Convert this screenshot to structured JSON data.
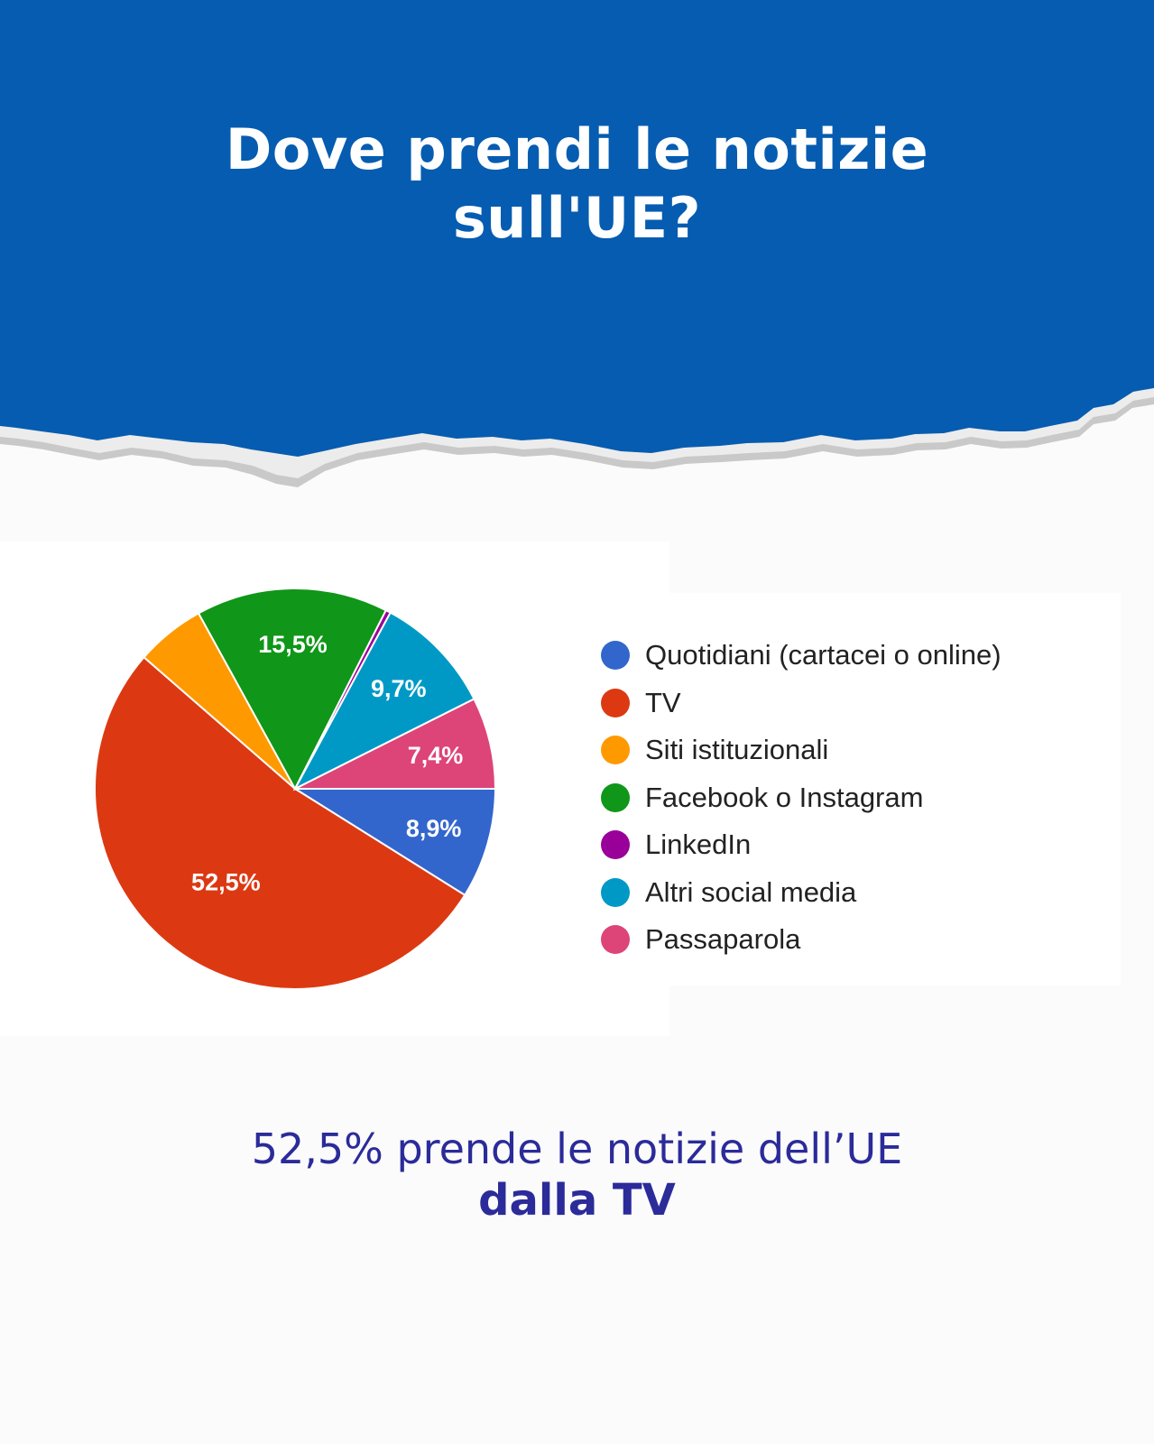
{
  "header": {
    "title_line1": "Dove prendi le notizie",
    "title_line2": "sull'UE?",
    "background_color": "#065cb0"
  },
  "chart_data": {
    "type": "pie",
    "start_angle_deg": 90,
    "direction": "clockwise",
    "legend_position": "right",
    "slices": [
      {
        "label": "Quotidiani (cartacei o online)",
        "value": 8.9,
        "value_label": "8,9%",
        "color": "#3366cc"
      },
      {
        "label": "TV",
        "value": 52.5,
        "value_label": "52,5%",
        "color": "#dc3912"
      },
      {
        "label": "Siti istituzionali",
        "value": 5.6,
        "value_label": "",
        "color": "#ff9900"
      },
      {
        "label": "Facebook o Instagram",
        "value": 15.5,
        "value_label": "15,5%",
        "color": "#109618"
      },
      {
        "label": "LinkedIn",
        "value": 0.4,
        "value_label": "",
        "color": "#990099"
      },
      {
        "label": "Altri social media",
        "value": 9.7,
        "value_label": "9,7%",
        "color": "#0099c6"
      },
      {
        "label": "Passaparola",
        "value": 7.4,
        "value_label": "7,4%",
        "color": "#dd4477"
      }
    ]
  },
  "caption": {
    "line1": "52,5% prende le notizie dell’UE",
    "line2": "dalla TV",
    "color": "#2b2b9a"
  }
}
